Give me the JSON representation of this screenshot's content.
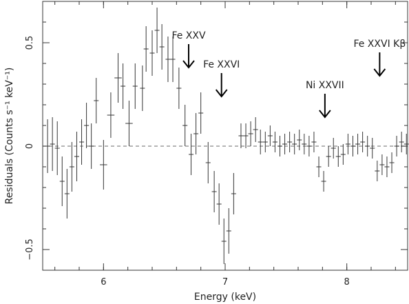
{
  "chart_data": {
    "type": "scatter",
    "xlabel": "Energy (keV)",
    "ylabel": "Residuals (Counts s⁻¹ keV⁻¹)",
    "xlim": [
      5.5,
      8.5
    ],
    "ylim": [
      -0.6,
      0.7
    ],
    "xticks": [
      6,
      7,
      8
    ],
    "xtick_labels": [
      "6",
      "7",
      "8"
    ],
    "yticks": [
      -0.5,
      0,
      0.5
    ],
    "ytick_labels": [
      "−0.5",
      "0",
      "0.5"
    ],
    "zero_line": 0,
    "series": [
      {
        "points": [
          {
            "x": 5.54,
            "y": 0.0,
            "xerr": 0.02,
            "yerr": 0.13
          },
          {
            "x": 5.58,
            "y": 0.01,
            "xerr": 0.02,
            "yerr": 0.13
          },
          {
            "x": 5.62,
            "y": -0.01,
            "xerr": 0.02,
            "yerr": 0.13
          },
          {
            "x": 5.66,
            "y": -0.17,
            "xerr": 0.02,
            "yerr": 0.12
          },
          {
            "x": 5.7,
            "y": -0.23,
            "xerr": 0.02,
            "yerr": 0.12
          },
          {
            "x": 5.74,
            "y": -0.1,
            "xerr": 0.02,
            "yerr": 0.12
          },
          {
            "x": 5.78,
            "y": -0.05,
            "xerr": 0.02,
            "yerr": 0.12
          },
          {
            "x": 5.82,
            "y": 0.02,
            "xerr": 0.02,
            "yerr": 0.11
          },
          {
            "x": 5.86,
            "y": 0.1,
            "xerr": 0.02,
            "yerr": 0.11
          },
          {
            "x": 5.9,
            "y": 0.0,
            "xerr": 0.02,
            "yerr": 0.11
          },
          {
            "x": 5.94,
            "y": 0.22,
            "xerr": 0.02,
            "yerr": 0.11
          },
          {
            "x": 6.0,
            "y": -0.09,
            "xerr": 0.03,
            "yerr": 0.12
          },
          {
            "x": 6.06,
            "y": 0.15,
            "xerr": 0.03,
            "yerr": 0.11
          },
          {
            "x": 6.12,
            "y": 0.33,
            "xerr": 0.03,
            "yerr": 0.12
          },
          {
            "x": 6.16,
            "y": 0.29,
            "xerr": 0.02,
            "yerr": 0.11
          },
          {
            "x": 6.21,
            "y": 0.11,
            "xerr": 0.03,
            "yerr": 0.11
          },
          {
            "x": 6.26,
            "y": 0.29,
            "xerr": 0.02,
            "yerr": 0.11
          },
          {
            "x": 6.32,
            "y": 0.28,
            "xerr": 0.02,
            "yerr": 0.11
          },
          {
            "x": 6.35,
            "y": 0.47,
            "xerr": 0.02,
            "yerr": 0.11
          },
          {
            "x": 6.4,
            "y": 0.45,
            "xerr": 0.02,
            "yerr": 0.11
          },
          {
            "x": 6.44,
            "y": 0.56,
            "xerr": 0.02,
            "yerr": 0.11
          },
          {
            "x": 6.48,
            "y": 0.48,
            "xerr": 0.02,
            "yerr": 0.11
          },
          {
            "x": 6.53,
            "y": 0.42,
            "xerr": 0.02,
            "yerr": 0.11
          },
          {
            "x": 6.57,
            "y": 0.42,
            "xerr": 0.02,
            "yerr": 0.11
          },
          {
            "x": 6.62,
            "y": 0.28,
            "xerr": 0.02,
            "yerr": 0.1
          },
          {
            "x": 6.67,
            "y": 0.1,
            "xerr": 0.02,
            "yerr": 0.1
          },
          {
            "x": 6.72,
            "y": -0.04,
            "xerr": 0.02,
            "yerr": 0.1
          },
          {
            "x": 6.76,
            "y": 0.06,
            "xerr": 0.02,
            "yerr": 0.1
          },
          {
            "x": 6.8,
            "y": 0.16,
            "xerr": 0.02,
            "yerr": 0.1
          },
          {
            "x": 6.86,
            "y": -0.08,
            "xerr": 0.02,
            "yerr": 0.1
          },
          {
            "x": 6.91,
            "y": -0.22,
            "xerr": 0.02,
            "yerr": 0.1
          },
          {
            "x": 6.95,
            "y": -0.28,
            "xerr": 0.02,
            "yerr": 0.1
          },
          {
            "x": 6.99,
            "y": -0.46,
            "xerr": 0.02,
            "yerr": 0.11
          },
          {
            "x": 7.03,
            "y": -0.41,
            "xerr": 0.02,
            "yerr": 0.11
          },
          {
            "x": 7.07,
            "y": -0.23,
            "xerr": 0.02,
            "yerr": 0.1
          },
          {
            "x": 7.13,
            "y": 0.05,
            "xerr": 0.02,
            "yerr": 0.06
          },
          {
            "x": 7.17,
            "y": 0.05,
            "xerr": 0.02,
            "yerr": 0.06
          },
          {
            "x": 7.21,
            "y": 0.06,
            "xerr": 0.02,
            "yerr": 0.06
          },
          {
            "x": 7.25,
            "y": 0.08,
            "xerr": 0.02,
            "yerr": 0.06
          },
          {
            "x": 7.29,
            "y": 0.02,
            "xerr": 0.02,
            "yerr": 0.06
          },
          {
            "x": 7.33,
            "y": 0.02,
            "xerr": 0.02,
            "yerr": 0.05
          },
          {
            "x": 7.37,
            "y": 0.05,
            "xerr": 0.02,
            "yerr": 0.05
          },
          {
            "x": 7.41,
            "y": 0.02,
            "xerr": 0.02,
            "yerr": 0.05
          },
          {
            "x": 7.45,
            "y": 0.0,
            "xerr": 0.02,
            "yerr": 0.05
          },
          {
            "x": 7.49,
            "y": 0.01,
            "xerr": 0.02,
            "yerr": 0.05
          },
          {
            "x": 7.53,
            "y": 0.02,
            "xerr": 0.02,
            "yerr": 0.05
          },
          {
            "x": 7.57,
            "y": 0.01,
            "xerr": 0.02,
            "yerr": 0.05
          },
          {
            "x": 7.61,
            "y": 0.03,
            "xerr": 0.02,
            "yerr": 0.05
          },
          {
            "x": 7.65,
            "y": 0.01,
            "xerr": 0.02,
            "yerr": 0.05
          },
          {
            "x": 7.69,
            "y": 0.0,
            "xerr": 0.02,
            "yerr": 0.05
          },
          {
            "x": 7.73,
            "y": 0.02,
            "xerr": 0.02,
            "yerr": 0.05
          },
          {
            "x": 7.77,
            "y": -0.1,
            "xerr": 0.02,
            "yerr": 0.05
          },
          {
            "x": 7.81,
            "y": -0.17,
            "xerr": 0.02,
            "yerr": 0.05
          },
          {
            "x": 7.85,
            "y": -0.05,
            "xerr": 0.02,
            "yerr": 0.05
          },
          {
            "x": 7.89,
            "y": -0.01,
            "xerr": 0.02,
            "yerr": 0.05
          },
          {
            "x": 7.93,
            "y": -0.05,
            "xerr": 0.02,
            "yerr": 0.05
          },
          {
            "x": 7.97,
            "y": -0.04,
            "xerr": 0.02,
            "yerr": 0.05
          },
          {
            "x": 8.01,
            "y": 0.01,
            "xerr": 0.02,
            "yerr": 0.05
          },
          {
            "x": 8.05,
            "y": 0.0,
            "xerr": 0.02,
            "yerr": 0.05
          },
          {
            "x": 8.09,
            "y": 0.01,
            "xerr": 0.02,
            "yerr": 0.05
          },
          {
            "x": 8.13,
            "y": 0.02,
            "xerr": 0.02,
            "yerr": 0.05
          },
          {
            "x": 8.17,
            "y": 0.0,
            "xerr": 0.02,
            "yerr": 0.05
          },
          {
            "x": 8.21,
            "y": -0.01,
            "xerr": 0.02,
            "yerr": 0.05
          },
          {
            "x": 8.25,
            "y": -0.12,
            "xerr": 0.02,
            "yerr": 0.05
          },
          {
            "x": 8.29,
            "y": -0.09,
            "xerr": 0.02,
            "yerr": 0.05
          },
          {
            "x": 8.33,
            "y": -0.1,
            "xerr": 0.02,
            "yerr": 0.05
          },
          {
            "x": 8.37,
            "y": -0.08,
            "xerr": 0.02,
            "yerr": 0.05
          },
          {
            "x": 8.41,
            "y": 0.0,
            "xerr": 0.02,
            "yerr": 0.05
          },
          {
            "x": 8.45,
            "y": 0.02,
            "xerr": 0.02,
            "yerr": 0.05
          },
          {
            "x": 8.49,
            "y": 0.01,
            "xerr": 0.02,
            "yerr": 0.05
          }
        ]
      }
    ],
    "annotations": [
      {
        "text": "Fe XXV",
        "x": 6.7,
        "y": 0.38
      },
      {
        "text": "Fe XXVI",
        "x": 6.97,
        "y": 0.24
      },
      {
        "text": "Ni XXVII",
        "x": 7.82,
        "y": 0.14
      },
      {
        "text": "Fe XXVI Kβ",
        "x": 8.27,
        "y": 0.34
      }
    ],
    "grid": false,
    "colors": {
      "data": "#333333",
      "zero_line": "#888888",
      "axes": "#333333",
      "arrows": "#000000"
    }
  }
}
